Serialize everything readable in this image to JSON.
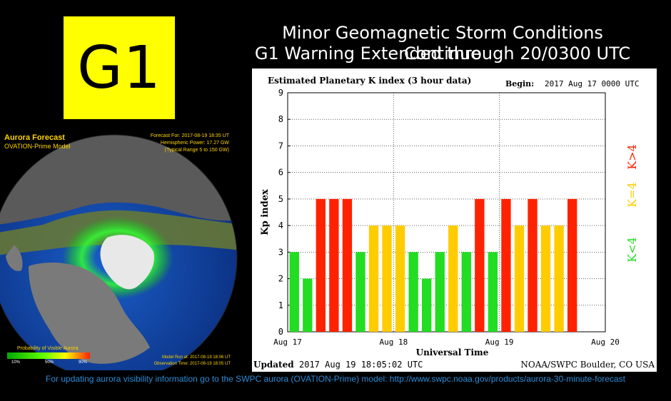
{
  "badge": {
    "label": "G1",
    "color": "#ffff00"
  },
  "headline": {
    "line1": "Minor Geomagnetic Storm Conditions Continue",
    "line2": "G1 Warning Extended through 20/0300 UTC"
  },
  "aurora": {
    "title": "Aurora Forecast",
    "model": "OVATION-Prime Model",
    "forecast_for": "Forecast For: 2017-08-19 18:35 UT",
    "hemispheric_power": "Hemispheric Power: 17.27 GW",
    "typical_range": "(Typical Range 5 to 150 GW)",
    "probability_label": "Probability of Visible Aurora",
    "scale_ticks": [
      "10%",
      "50%",
      "90%"
    ],
    "model_run": "Model Run at: 2017-08-19 18:06 UT",
    "observation_time": "Observation Time: 2017-08-19 18:05 UT"
  },
  "chart_data": {
    "type": "bar",
    "title": "Estimated Planetary K index (3 hour data)",
    "begin_label": "Begin:",
    "begin_value": "2017 Aug 17 0000 UTC",
    "ylabel": "Kp index",
    "xlabel": "Universal Time",
    "ylim": [
      0,
      9
    ],
    "yticks": [
      "0",
      "1",
      "2",
      "3",
      "4",
      "5",
      "6",
      "7",
      "8",
      "9"
    ],
    "xticks": [
      "Aug 17",
      "Aug 18",
      "Aug 19",
      "Aug 20"
    ],
    "grid": true,
    "values": [
      3,
      2,
      5,
      5,
      5,
      3,
      4,
      4,
      4,
      3,
      2,
      3,
      4,
      3,
      5,
      3,
      5,
      4,
      5,
      4,
      4,
      5
    ],
    "colors": {
      "below4": "#22dd22",
      "equal4": "#ffcc00",
      "above4": "#ff2200"
    },
    "legend": [
      "K<4",
      "K=4",
      "K>4"
    ],
    "updated_label": "Updated",
    "updated_value": "2017 Aug 19 18:05:02 UTC",
    "credit": "NOAA/SWPC Boulder, CO USA"
  },
  "footer": {
    "text": "For updating aurora visibility information go to the SWPC aurora (OVATION-Prime) model:  http://www.swpc.noaa.gov/products/aurora-30-minute-forecast",
    "color": "#2a8cd8"
  }
}
